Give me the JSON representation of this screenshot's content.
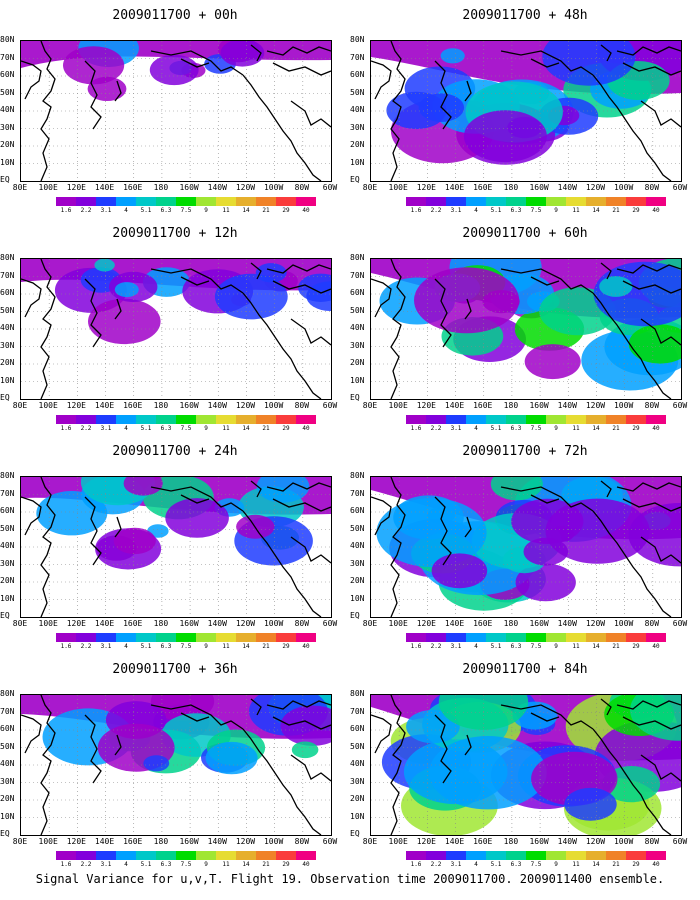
{
  "caption": "Signal Variance for u,v,T. Flight 19. Observation time 2009011700. 2009011400 ensemble.",
  "x_axis_labels": [
    "80E",
    "100E",
    "120E",
    "140E",
    "160E",
    "180",
    "160W",
    "140W",
    "120W",
    "100W",
    "80W",
    "60W"
  ],
  "y_axis_labels": [
    "80N",
    "70N",
    "60N",
    "50N",
    "40N",
    "30N",
    "20N",
    "10N",
    "EQ"
  ],
  "colorbar": {
    "labels": [
      "1.6",
      "2.2",
      "3.1",
      "4",
      "5.1",
      "6.3",
      "7.5",
      "9",
      "11",
      "14",
      "21",
      "29",
      "40"
    ],
    "colors": [
      "#a000c8",
      "#8200dc",
      "#1e3cff",
      "#00a0ff",
      "#00c8c8",
      "#00d28c",
      "#00dc00",
      "#a0e632",
      "#e6dc32",
      "#e6af2d",
      "#f08228",
      "#fa3c3c",
      "#f00082"
    ]
  },
  "panels": [
    {
      "title": "2009011700 + 00h",
      "lead_hours": 0,
      "coverage": 0.15,
      "intensity": 0.2
    },
    {
      "title": "2009011700 + 48h",
      "lead_hours": 48,
      "coverage": 0.7,
      "intensity": 0.55
    },
    {
      "title": "2009011700 + 12h",
      "lead_hours": 12,
      "coverage": 0.35,
      "intensity": 0.35
    },
    {
      "title": "2009011700 + 60h",
      "lead_hours": 60,
      "coverage": 0.8,
      "intensity": 0.6
    },
    {
      "title": "2009011700 + 24h",
      "lead_hours": 24,
      "coverage": 0.45,
      "intensity": 0.45
    },
    {
      "title": "2009011700 + 72h",
      "lead_hours": 72,
      "coverage": 0.85,
      "intensity": 0.65
    },
    {
      "title": "2009011700 + 36h",
      "lead_hours": 36,
      "coverage": 0.55,
      "intensity": 0.5
    },
    {
      "title": "2009011700 + 84h",
      "lead_hours": 84,
      "coverage": 0.9,
      "intensity": 0.75
    }
  ]
}
